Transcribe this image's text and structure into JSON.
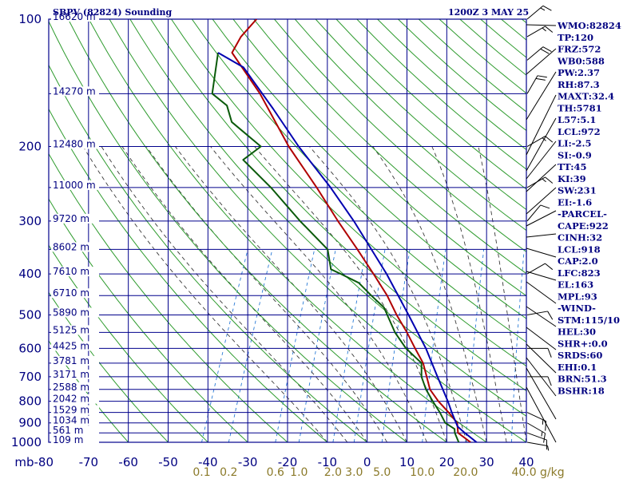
{
  "header": {
    "title": "SBPV (82824) Sounding",
    "datetime": "1200Z  3 MAY 25"
  },
  "indices": [
    "WMO:82824",
    "TP:120",
    "FRZ:572",
    "WB0:588",
    "PW:2.37",
    "RH:87.3",
    "MAXT:32.4",
    "TH:5781",
    "L57:5.1",
    "LCL:972",
    "LI:-2.5",
    "SI:-0.9",
    "TT:45",
    "KI:39",
    "SW:231",
    "EI:-1.6",
    "-PARCEL-",
    "CAPE:922",
    "CINH:32",
    "LCL:918",
    "CAP:2.0",
    "LFC:823",
    "EL:163",
    "MPL:93",
    "-WIND-",
    "STM:115/10",
    "HEL:30",
    "SHR+:0.0",
    "SRDS:60",
    "EHI:0.1",
    "BRN:51.3",
    "BSHR:18"
  ],
  "colors": {
    "grid": "#00008b",
    "dry_adiabat": "#2e9b2e",
    "moist_adiabat": "#3a3a3a",
    "mixing_ratio": "#2a7bd6",
    "temperature": "#b00000",
    "dewpoint": "#0a5a0a",
    "parcel": "#0000b0",
    "labels": "#000080",
    "mixing_ratio_labels": "#8b7a2a"
  },
  "chart_data": {
    "type": "line",
    "skewt": true,
    "xlim": [
      -80,
      40
    ],
    "ylim": [
      1000,
      100
    ],
    "y_scale": "log",
    "y_unit": "mb",
    "x_unit": "C",
    "p_ticks": [
      100,
      200,
      300,
      400,
      500,
      600,
      700,
      800,
      900,
      1000
    ],
    "p_lines": [
      100,
      150,
      200,
      250,
      300,
      350,
      400,
      450,
      500,
      550,
      600,
      650,
      700,
      750,
      800,
      850,
      900,
      950,
      1000
    ],
    "t_ticks": [
      -80,
      -70,
      -60,
      -50,
      -40,
      -30,
      -20,
      -10,
      0,
      10,
      20,
      30,
      40
    ],
    "t_tick_labels": [
      "mb-80",
      "-70",
      "-60",
      "-50",
      "-40",
      "-30",
      "-20",
      "-10",
      "0",
      "10",
      "20",
      "30",
      "40"
    ],
    "mixing_ratio_labels": [
      "0.1",
      "0.2",
      "0.6",
      "1.0",
      "2.0",
      "3.0",
      "5.0",
      "10.0",
      "20.0",
      "40.0 g/kg"
    ],
    "mixing_ratio_values": [
      0.1,
      0.2,
      0.6,
      1.0,
      2.0,
      3.0,
      5.0,
      10.0,
      20.0,
      40.0
    ],
    "heights": [
      {
        "p": 100,
        "label": "16620 m"
      },
      {
        "p": 150,
        "label": "14270 m"
      },
      {
        "p": 200,
        "label": "12480 m"
      },
      {
        "p": 250,
        "label": "11000 m"
      },
      {
        "p": 300,
        "label": "9720 m"
      },
      {
        "p": 350,
        "label": "8602 m"
      },
      {
        "p": 400,
        "label": "7610 m"
      },
      {
        "p": 450,
        "label": "6710 m"
      },
      {
        "p": 500,
        "label": "5890 m"
      },
      {
        "p": 550,
        "label": "5125 m"
      },
      {
        "p": 600,
        "label": "4425 m"
      },
      {
        "p": 650,
        "label": "3781 m"
      },
      {
        "p": 700,
        "label": "3171 m"
      },
      {
        "p": 750,
        "label": "2588 m"
      },
      {
        "p": 800,
        "label": "2042 m"
      },
      {
        "p": 850,
        "label": "1529 m"
      },
      {
        "p": 900,
        "label": "1034 m"
      },
      {
        "p": 950,
        "label": "561 m"
      },
      {
        "p": 1000,
        "label": "109 m"
      }
    ],
    "series": [
      {
        "key": "temperature",
        "points": [
          {
            "p": 1000,
            "t": 26.0
          },
          {
            "p": 950,
            "t": 21.8
          },
          {
            "p": 900,
            "t": 20.5
          },
          {
            "p": 850,
            "t": 17.2
          },
          {
            "p": 800,
            "t": 13.4
          },
          {
            "p": 750,
            "t": 10.0
          },
          {
            "p": 700,
            "t": 7.8
          },
          {
            "p": 650,
            "t": 5.4
          },
          {
            "p": 600,
            "t": 1.8
          },
          {
            "p": 550,
            "t": -2.0
          },
          {
            "p": 500,
            "t": -6.5
          },
          {
            "p": 450,
            "t": -11.0
          },
          {
            "p": 400,
            "t": -16.8
          },
          {
            "p": 350,
            "t": -23.5
          },
          {
            "p": 300,
            "t": -31.5
          },
          {
            "p": 250,
            "t": -40.5
          },
          {
            "p": 200,
            "t": -52.0
          },
          {
            "p": 150,
            "t": -65.0
          },
          {
            "p": 120,
            "t": -76.5
          },
          {
            "p": 110,
            "t": -76.0
          },
          {
            "p": 100,
            "t": -74.0
          }
        ]
      },
      {
        "key": "dewpoint",
        "points": [
          {
            "p": 1000,
            "t": 23.0
          },
          {
            "p": 950,
            "t": 21.0
          },
          {
            "p": 930,
            "t": 20.5
          },
          {
            "p": 900,
            "t": 17.5
          },
          {
            "p": 850,
            "t": 15.0
          },
          {
            "p": 800,
            "t": 12.0
          },
          {
            "p": 750,
            "t": 9.0
          },
          {
            "p": 700,
            "t": 6.5
          },
          {
            "p": 650,
            "t": 5.0
          },
          {
            "p": 600,
            "t": -0.5
          },
          {
            "p": 550,
            "t": -5.0
          },
          {
            "p": 480,
            "t": -10.5
          },
          {
            "p": 450,
            "t": -15.0
          },
          {
            "p": 420,
            "t": -19.5
          },
          {
            "p": 400,
            "t": -25.0
          },
          {
            "p": 390,
            "t": -28.0
          },
          {
            "p": 350,
            "t": -31.0
          },
          {
            "p": 300,
            "t": -41.0
          },
          {
            "p": 250,
            "t": -52.0
          },
          {
            "p": 215,
            "t": -62.0
          },
          {
            "p": 200,
            "t": -59.0
          },
          {
            "p": 175,
            "t": -69.0
          },
          {
            "p": 160,
            "t": -72.0
          },
          {
            "p": 150,
            "t": -77.0
          },
          {
            "p": 120,
            "t": -80.0
          }
        ]
      },
      {
        "key": "parcel",
        "points": [
          {
            "p": 1000,
            "t": 27.5
          },
          {
            "p": 950,
            "t": 23.5
          },
          {
            "p": 918,
            "t": 21.0
          },
          {
            "p": 850,
            "t": 18.0
          },
          {
            "p": 800,
            "t": 15.8
          },
          {
            "p": 700,
            "t": 10.5
          },
          {
            "p": 600,
            "t": 4.5
          },
          {
            "p": 500,
            "t": -3.5
          },
          {
            "p": 400,
            "t": -13.5
          },
          {
            "p": 300,
            "t": -27.5
          },
          {
            "p": 250,
            "t": -37.0
          },
          {
            "p": 200,
            "t": -49.5
          },
          {
            "p": 163,
            "t": -60.0
          },
          {
            "p": 130,
            "t": -72.0
          },
          {
            "p": 120,
            "t": -80.0
          }
        ]
      }
    ],
    "wind_barbs": [
      {
        "p": 1000,
        "dir": 100,
        "spd": 5
      },
      {
        "p": 950,
        "dir": 110,
        "spd": 10
      },
      {
        "p": 900,
        "dir": 120,
        "spd": 15
      },
      {
        "p": 850,
        "dir": 115,
        "spd": 15
      },
      {
        "p": 700,
        "dir": 90,
        "spd": 10
      },
      {
        "p": 600,
        "dir": 90,
        "spd": 10
      },
      {
        "p": 500,
        "dir": 80,
        "spd": 10
      },
      {
        "p": 400,
        "dir": 60,
        "spd": 10
      },
      {
        "p": 300,
        "dir": 40,
        "spd": 10
      },
      {
        "p": 250,
        "dir": 60,
        "spd": 15
      },
      {
        "p": 200,
        "dir": 60,
        "spd": 15
      },
      {
        "p": 150,
        "dir": 30,
        "spd": 20
      },
      {
        "p": 125,
        "dir": 50,
        "spd": 20
      },
      {
        "p": 110,
        "dir": 60,
        "spd": 15
      },
      {
        "p": 100,
        "dir": 50,
        "spd": 15
      }
    ]
  }
}
